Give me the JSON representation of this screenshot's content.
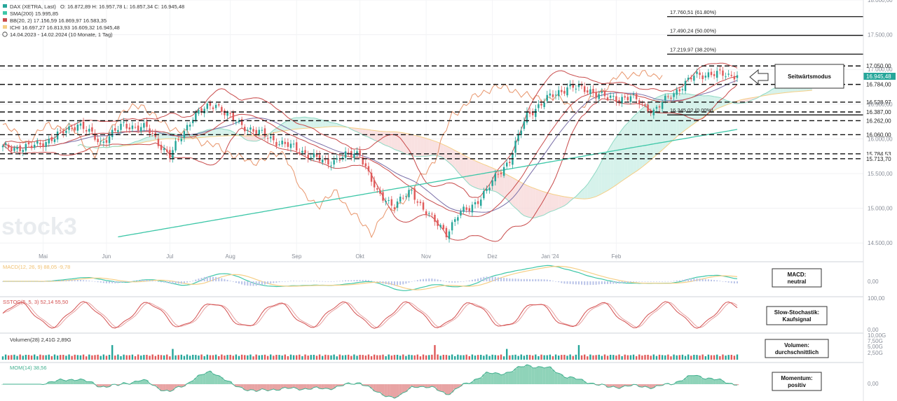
{
  "chart_data": {
    "type": "candlestick",
    "title": "DAX (XETRA, Last)",
    "ohlc_label": "O: 16.872,89  H: 16.957,78  L: 16.857,34  C: 16.945,48",
    "period_label": "14.04.2023 - 14.02.2024  (10 Monate, 1 Tag)",
    "indicator_labels": {
      "sma": "SMA(200)  15.995,85",
      "bb": "BB(20, 2)  17.156,59  16.869,97  16.583,35",
      "ichimoku": "ICHI  16.697,27  16.813,93  16.609,32  16.945,48"
    },
    "price_axis": {
      "ylim": [
        14250,
        18000
      ],
      "ticks": [
        "18.000,00",
        "17.500,00",
        "17.000,00",
        "16.500,00",
        "16.000,00",
        "15.500,00",
        "15.000,00",
        "14.500,00"
      ]
    },
    "x_ticks": [
      "Mai",
      "Jun",
      "Jul",
      "Aug",
      "Sep",
      "Okt",
      "Nov",
      "Dez",
      "Jan '24",
      "Feb"
    ],
    "price_anchors": [
      [
        0,
        15870
      ],
      [
        10,
        15880
      ],
      [
        18,
        16020
      ],
      [
        26,
        16220
      ],
      [
        34,
        15950
      ],
      [
        42,
        16200
      ],
      [
        50,
        16150
      ],
      [
        58,
        15750
      ],
      [
        66,
        16330
      ],
      [
        74,
        16510
      ],
      [
        80,
        16260
      ],
      [
        88,
        16100
      ],
      [
        96,
        15950
      ],
      [
        104,
        15820
      ],
      [
        112,
        15650
      ],
      [
        118,
        15740
      ],
      [
        124,
        15800
      ],
      [
        130,
        15200
      ],
      [
        136,
        15050
      ],
      [
        142,
        15240
      ],
      [
        146,
        15000
      ],
      [
        150,
        14800
      ],
      [
        154,
        14650
      ],
      [
        158,
        14900
      ],
      [
        162,
        15000
      ],
      [
        168,
        15250
      ],
      [
        172,
        15500
      ],
      [
        176,
        15700
      ],
      [
        182,
        16350
      ],
      [
        190,
        16600
      ],
      [
        196,
        16750
      ],
      [
        204,
        16700
      ],
      [
        210,
        16580
      ],
      [
        218,
        16600
      ],
      [
        226,
        16400
      ],
      [
        234,
        16700
      ],
      [
        240,
        16900
      ],
      [
        246,
        16950
      ],
      [
        252,
        16900
      ],
      [
        255,
        16945
      ]
    ],
    "levels": [
      "17.050,00",
      "16.784,00",
      "16.528,97",
      "16.387,00",
      "16.262,00",
      "16.060,00",
      "15.784,53",
      "15.713,70"
    ],
    "level_values": [
      17050,
      16784,
      16528.97,
      16387,
      16262,
      16060,
      15784.53,
      15713.7
    ],
    "fibonacci": [
      {
        "label": "17.760,51 (61.80%)",
        "value": 17760.51
      },
      {
        "label": "17.490,24 (50.00%)",
        "value": 17490.24
      },
      {
        "label": "17.219,97 (38.20%)",
        "value": 17219.97
      },
      {
        "label": "16.345,02 (0.00%)",
        "value": 16345.02
      }
    ],
    "last_price_label": "16.945,48",
    "annotation_text": "Seitwärtsmodus",
    "panels": {
      "macd": {
        "legend": "MACD(12, 26, 9)  88,05  -9,78",
        "ticks": [
          "0,00"
        ],
        "box_lines": [
          "MACD:",
          "neutral"
        ]
      },
      "stoch": {
        "legend": "SSTOC(5, 5, 3)  52,14  55,50",
        "ticks": [
          "100,00",
          "0,00"
        ],
        "box_lines": [
          "Slow-Stochastik:",
          "Kaufsignal"
        ]
      },
      "volume": {
        "legend": "Volumen(28)  2,41G  2,89G",
        "ticks": [
          "10,00G",
          "7,50G",
          "5,00G",
          "2,50G"
        ],
        "box_lines": [
          "Volumen:",
          "durchschnittlich"
        ]
      },
      "momentum": {
        "legend": "MOM(14)  38,56",
        "ticks": [
          "0,00"
        ],
        "box_lines": [
          "Momentum:",
          "positiv"
        ]
      }
    },
    "watermark": "stock3"
  },
  "colors": {
    "up": "#26a69a",
    "down": "#e05a5a",
    "sma": "#3ec7a8",
    "bb": "#c84a4a",
    "cloud_green": "#ccefe6",
    "cloud_red": "#f7d9d9",
    "lagging": "#e8956b",
    "leading_b": "#f5cf86",
    "kijun": "#7a6fa8",
    "stoch_k": "#d34f4f",
    "stoch_d": "#e8a0a0",
    "macd": "#3ec7a8",
    "macd_signal": "#f5cf86",
    "mom": "#42b08f"
  }
}
